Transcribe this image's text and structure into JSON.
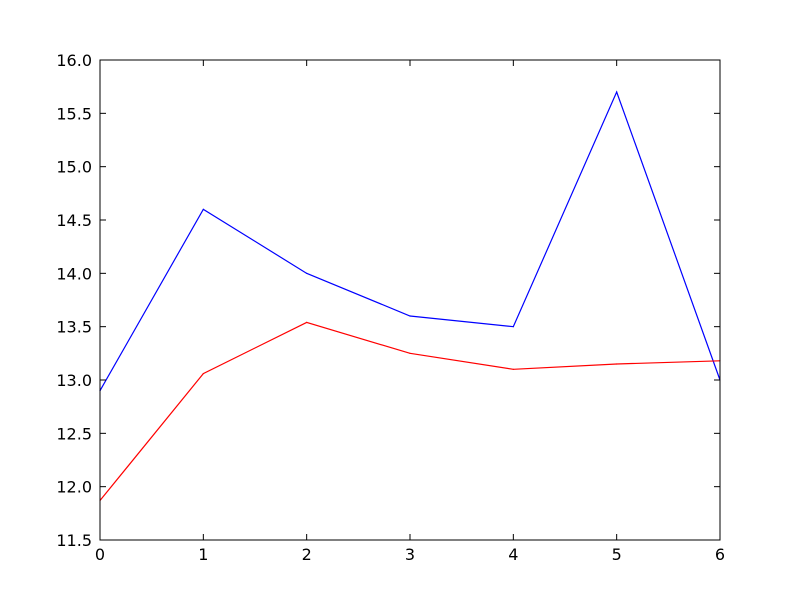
{
  "chart_data": {
    "type": "line",
    "title": "",
    "xlabel": "",
    "ylabel": "",
    "x": [
      0,
      1,
      2,
      3,
      4,
      5,
      6
    ],
    "xlim": [
      0,
      6
    ],
    "ylim": [
      11.5,
      16.0
    ],
    "xticks": [
      "0",
      "1",
      "2",
      "3",
      "4",
      "5",
      "6"
    ],
    "yticks": [
      "11.5",
      "12.0",
      "12.5",
      "13.0",
      "13.5",
      "14.0",
      "14.5",
      "15.0",
      "15.5",
      "16.0"
    ],
    "grid": false,
    "series": [
      {
        "color": "#0000ff",
        "values": [
          12.9,
          14.6,
          14.0,
          13.6,
          13.5,
          15.7,
          13.0
        ]
      },
      {
        "color": "#ff0000",
        "values": [
          11.87,
          13.06,
          13.54,
          13.25,
          13.1,
          13.15,
          13.18
        ]
      }
    ]
  }
}
